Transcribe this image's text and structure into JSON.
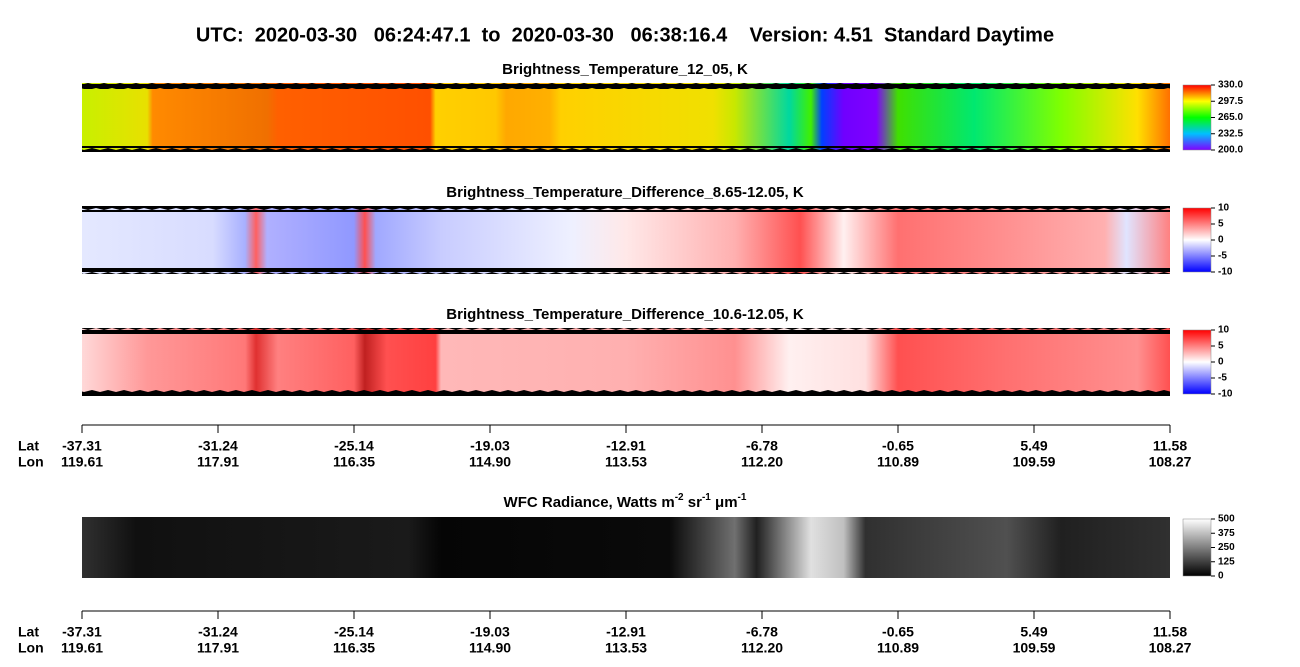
{
  "title": "UTC:  2020-03-30   06:24:47.1  to  2020-03-30   06:38:16.4    Version: 4.51  Standard Daytime",
  "panels": [
    {
      "title": [
        {
          "text": "Brightness_Temperature_12_05, K"
        }
      ],
      "colorbar_ticks": [
        "330.0",
        "297.5",
        "265.0",
        "232.5",
        "200.0"
      ]
    },
    {
      "title": [
        {
          "text": "Brightness_Temperature_Difference_8.65-12.05, K"
        }
      ],
      "colorbar_ticks": [
        "10",
        "5",
        "0",
        "-5",
        "-10"
      ]
    },
    {
      "title": [
        {
          "text": "Brightness_Temperature_Difference_10.6-12.05, K"
        }
      ],
      "colorbar_ticks": [
        "10",
        "5",
        "0",
        "-5",
        "-10"
      ]
    },
    {
      "title": [
        {
          "text": "WFC Radiance, Watts m"
        },
        {
          "sup": "-2"
        },
        {
          "text": " sr"
        },
        {
          "sup": "-1"
        },
        {
          "text": " μm"
        },
        {
          "sup": "-1"
        }
      ],
      "colorbar_ticks": [
        "500",
        "375",
        "250",
        "125",
        "0"
      ]
    }
  ],
  "axes": [
    {
      "row_labels": [
        "Lat",
        "Lon"
      ],
      "lat": [
        "-37.31",
        "-31.24",
        "-25.14",
        "-19.03",
        "-12.91",
        "-6.78",
        "-0.65",
        "5.49",
        "11.58"
      ],
      "lon": [
        "119.61",
        "117.91",
        "116.35",
        "114.90",
        "113.53",
        "112.20",
        "110.89",
        "109.59",
        "108.27"
      ]
    },
    {
      "row_labels": [
        "Lat",
        "Lon"
      ],
      "lat": [
        "-37.31",
        "-31.24",
        "-25.14",
        "-19.03",
        "-12.91",
        "-6.78",
        "-0.65",
        "5.49",
        "11.58"
      ],
      "lon": [
        "119.61",
        "117.91",
        "116.35",
        "114.90",
        "113.53",
        "112.20",
        "110.89",
        "109.59",
        "108.27"
      ]
    }
  ]
}
